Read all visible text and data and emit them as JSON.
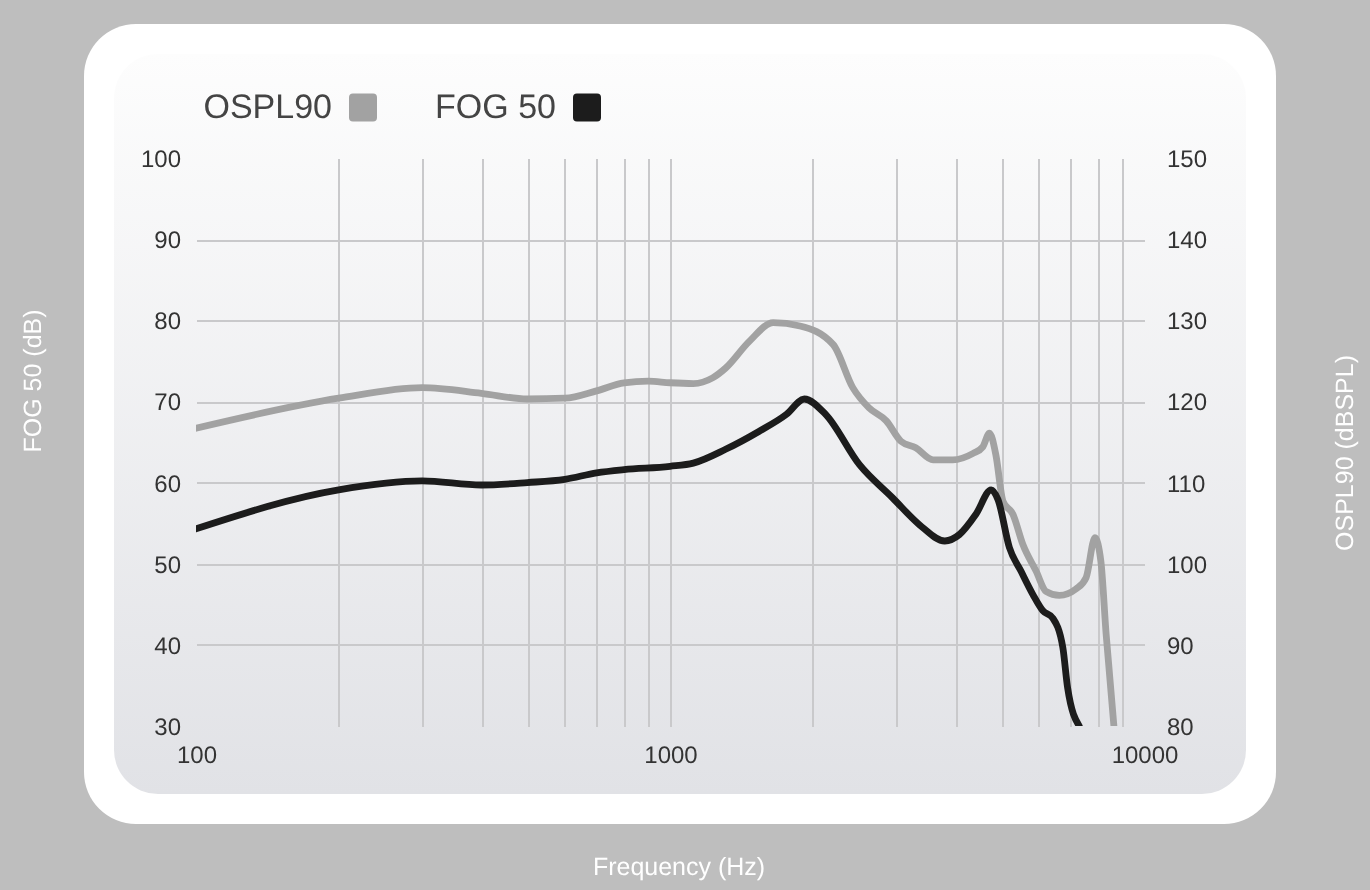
{
  "chart_data": {
    "type": "line",
    "xlabel": "Frequency (Hz)",
    "ylabel": "FOG 50 (dB)",
    "y2label": "OSPL90 (dBSPL)",
    "log": "x",
    "xlim": [
      100,
      10000
    ],
    "xticks": [
      100,
      {
        "value": 200,
        "label": null
      },
      {
        "value": 300,
        "label": null
      },
      {
        "value": 400,
        "label": null
      },
      {
        "value": 500,
        "label": null
      },
      {
        "value": 600,
        "label": null
      },
      {
        "value": 700,
        "label": null
      },
      {
        "value": 800,
        "label": null
      },
      {
        "value": 900,
        "label": null
      },
      1000,
      {
        "value": 2000,
        "label": null
      },
      {
        "value": 3000,
        "label": null
      },
      {
        "value": 4000,
        "label": null
      },
      {
        "value": 5000,
        "label": null
      },
      {
        "value": 6000,
        "label": null
      },
      {
        "value": 7000,
        "label": null
      },
      {
        "value": 8000,
        "label": null
      },
      {
        "value": 9000,
        "label": null
      },
      10000
    ],
    "ylim": [
      30,
      100
    ],
    "yticks": [
      30,
      40,
      50,
      60,
      70,
      80,
      90,
      100
    ],
    "y2lim": [
      80,
      150
    ],
    "y2ticks": [
      80,
      90,
      100,
      110,
      120,
      130,
      140,
      150
    ],
    "grid": true,
    "legend": "top left",
    "series": [
      {
        "name": "OSPL90",
        "color": "#a2a2a2",
        "axis": "y2",
        "x": [
          100,
          200,
          300,
          400,
          500,
          600,
          700,
          800,
          900,
          1000,
          1120,
          1230,
          1310,
          1470,
          1650,
          1880,
          2210,
          2430,
          2630,
          2860,
          3070,
          3300,
          3590,
          3950,
          4360,
          4570,
          4720,
          4870,
          5040,
          5290,
          5550,
          5920,
          6210,
          6630,
          7190,
          7550,
          7880,
          8110,
          8320,
          8640
        ],
        "values": [
          116.7,
          120.4,
          121.7,
          121.0,
          120.3,
          120.4,
          121.3,
          122.3,
          122.5,
          122.3,
          122.2,
          122.9,
          124.1,
          127.4,
          129.7,
          129.3,
          127.0,
          121.7,
          119.2,
          117.6,
          115.1,
          114.3,
          112.8,
          112.8,
          113.6,
          114.4,
          116.1,
          113.4,
          107.7,
          106.1,
          102.4,
          99.1,
          96.6,
          96.1,
          96.9,
          98.3,
          103.2,
          100.3,
          91.3,
          80
        ]
      },
      {
        "name": "FOG 50",
        "color": "#1c1c1c",
        "axis": "y",
        "x": [
          100,
          200,
          300,
          400,
          500,
          600,
          700,
          800,
          1000,
          1120,
          1310,
          1540,
          1760,
          1920,
          2130,
          2510,
          2950,
          3360,
          3800,
          4080,
          4420,
          4760,
          4920,
          5200,
          5500,
          5830,
          6120,
          6420,
          6740,
          6900,
          7300
        ],
        "values": [
          54.3,
          59.1,
          60.2,
          59.7,
          60.0,
          60.4,
          61.2,
          61.6,
          62.0,
          62.4,
          64.1,
          66.3,
          68.4,
          70.3,
          68.4,
          62.2,
          58.1,
          54.8,
          52.8,
          53.6,
          56.1,
          59.1,
          57.9,
          52.0,
          49.1,
          46.2,
          44.2,
          43.3,
          39.7,
          34.7,
          30
        ]
      }
    ]
  }
}
